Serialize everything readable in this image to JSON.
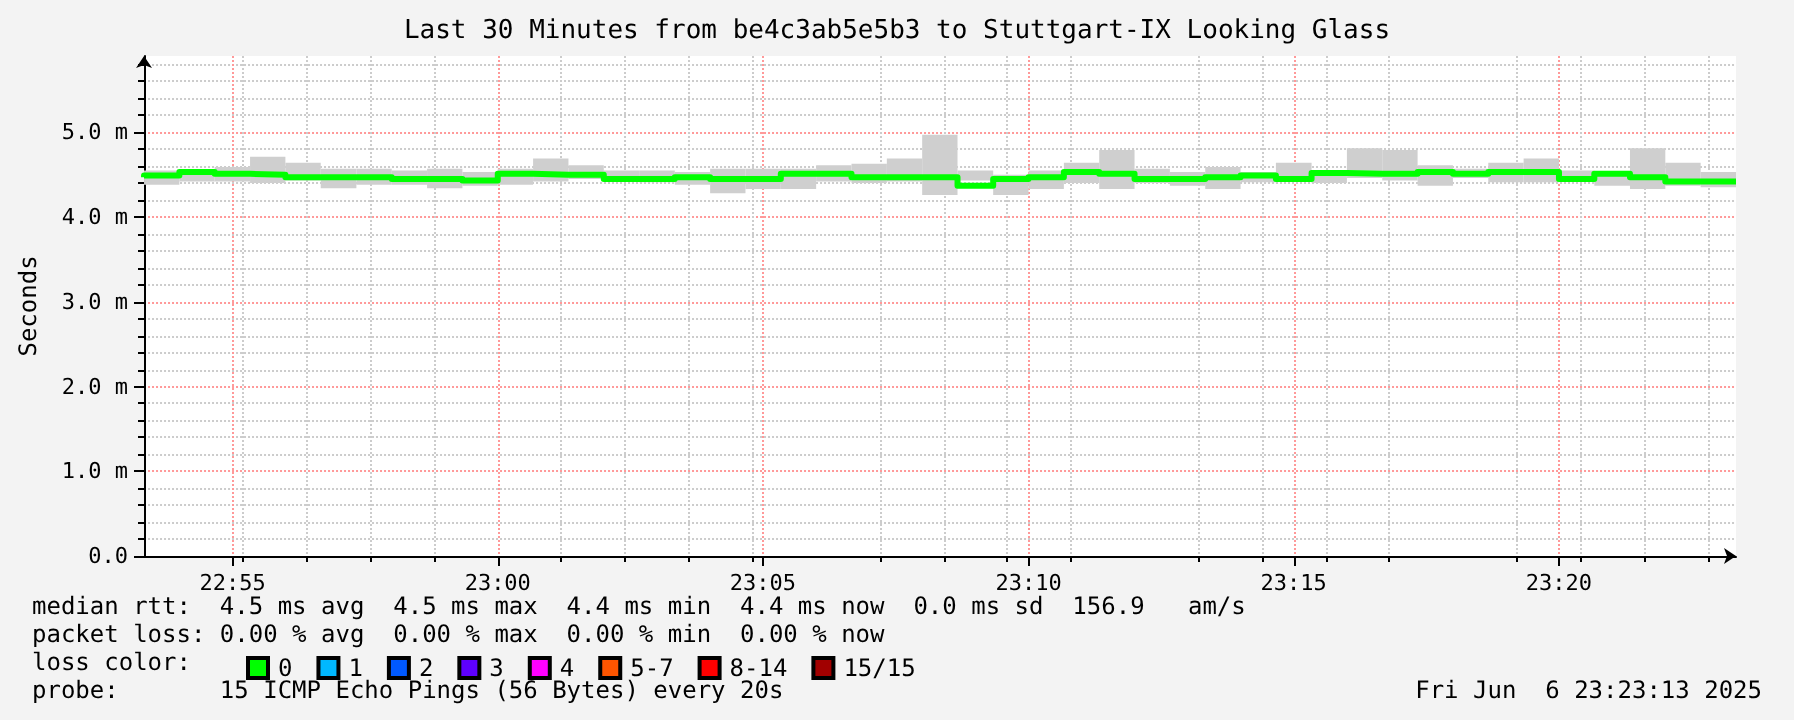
{
  "chart_data": {
    "type": "step",
    "title": "Last 30 Minutes from be4c3ab5e5b3 to Stuttgart-IX Looking Glass",
    "ylabel": "Seconds",
    "legend_title": "loss color:",
    "x": [
      22.8889,
      22.9,
      22.9111,
      22.9222,
      22.9333,
      22.9444,
      22.9556,
      22.9667,
      22.9778,
      22.9889,
      23.0,
      23.0111,
      23.0222,
      23.0333,
      23.0444,
      23.0556,
      23.0667,
      23.0778,
      23.0889,
      23.1,
      23.1111,
      23.1222,
      23.1333,
      23.1444,
      23.1556,
      23.1667,
      23.1778,
      23.1889,
      23.2,
      23.2111,
      23.2222,
      23.2333,
      23.2444,
      23.2556,
      23.2667,
      23.2778,
      23.2889,
      23.3,
      23.3111,
      23.3222,
      23.3333,
      23.3444,
      23.3556,
      23.3667,
      23.3778,
      23.3889
    ],
    "series": [
      {
        "name": "0",
        "color": "#00ff00",
        "values": [
          4.47,
          4.49,
          4.53,
          4.51,
          4.5,
          4.47,
          4.47,
          4.47,
          4.45,
          4.45,
          4.43,
          4.51,
          4.5,
          4.5,
          4.45,
          4.45,
          4.47,
          4.45,
          4.45,
          4.51,
          4.51,
          4.47,
          4.47,
          4.47,
          4.37,
          4.45,
          4.47,
          4.53,
          4.51,
          4.45,
          4.45,
          4.47,
          4.49,
          4.45,
          4.52,
          4.51,
          4.51,
          4.53,
          4.51,
          4.53,
          4.53,
          4.45,
          4.51,
          4.47,
          4.42,
          4.42
        ],
        "lower": [
          4.38,
          4.42,
          4.42,
          4.4,
          4.43,
          4.34,
          4.38,
          4.38,
          4.34,
          4.37,
          4.38,
          4.42,
          4.45,
          4.46,
          4.41,
          4.38,
          4.28,
          4.33,
          4.33,
          4.42,
          4.4,
          4.42,
          4.26,
          4.43,
          4.26,
          4.33,
          4.4,
          4.33,
          4.4,
          4.37,
          4.33,
          4.41,
          4.45,
          4.4,
          4.46,
          4.43,
          4.37,
          4.46,
          4.41,
          4.41,
          4.48,
          4.37,
          4.33,
          4.37,
          4.35,
          4.35
        ],
        "upper": [
          4.55,
          4.55,
          4.59,
          4.71,
          4.64,
          4.57,
          4.57,
          4.55,
          4.57,
          4.53,
          4.57,
          4.69,
          4.61,
          4.55,
          4.55,
          4.53,
          4.57,
          4.57,
          4.57,
          4.61,
          4.63,
          4.69,
          4.97,
          4.55,
          4.5,
          4.55,
          4.64,
          4.79,
          4.57,
          4.53,
          4.59,
          4.53,
          4.64,
          4.53,
          4.81,
          4.79,
          4.61,
          4.57,
          4.64,
          4.69,
          4.55,
          4.53,
          4.81,
          4.64,
          4.53,
          4.53
        ]
      },
      {
        "name": "1",
        "color": "#00b8ff",
        "values": [
          null,
          null,
          null,
          null,
          null,
          null,
          null,
          null,
          null,
          null,
          null,
          null,
          null,
          null,
          null,
          null,
          null,
          null,
          null,
          null,
          null,
          null,
          null,
          null,
          null,
          null,
          null,
          null,
          null,
          null,
          null,
          null,
          null,
          null,
          null,
          null,
          null,
          null,
          null,
          null,
          null,
          null,
          null,
          null,
          null,
          null
        ]
      },
      {
        "name": "2",
        "color": "#0059ff",
        "values": [
          null,
          null,
          null,
          null,
          null,
          null,
          null,
          null,
          null,
          null,
          null,
          null,
          null,
          null,
          null,
          null,
          null,
          null,
          null,
          null,
          null,
          null,
          null,
          null,
          null,
          null,
          null,
          null,
          null,
          null,
          null,
          null,
          null,
          null,
          null,
          null,
          null,
          null,
          null,
          null,
          null,
          null,
          null,
          null,
          null,
          null
        ]
      },
      {
        "name": "3",
        "color": "#5e00ff",
        "values": [
          null,
          null,
          null,
          null,
          null,
          null,
          null,
          null,
          null,
          null,
          null,
          null,
          null,
          null,
          null,
          null,
          null,
          null,
          null,
          null,
          null,
          null,
          null,
          null,
          null,
          null,
          null,
          null,
          null,
          null,
          null,
          null,
          null,
          null,
          null,
          null,
          null,
          null,
          null,
          null,
          null,
          null,
          null,
          null,
          null,
          null
        ]
      },
      {
        "name": "4",
        "color": "#ff00ff",
        "values": [
          null,
          null,
          null,
          null,
          null,
          null,
          null,
          null,
          null,
          null,
          null,
          null,
          null,
          null,
          null,
          null,
          null,
          null,
          null,
          null,
          null,
          null,
          null,
          null,
          null,
          null,
          null,
          null,
          null,
          null,
          null,
          null,
          null,
          null,
          null,
          null,
          null,
          null,
          null,
          null,
          null,
          null,
          null,
          null,
          null,
          null
        ]
      },
      {
        "name": "5-7",
        "color": "#ff5500",
        "values": [
          null,
          null,
          null,
          null,
          null,
          null,
          null,
          null,
          null,
          null,
          null,
          null,
          null,
          null,
          null,
          null,
          null,
          null,
          null,
          null,
          null,
          null,
          null,
          null,
          null,
          null,
          null,
          null,
          null,
          null,
          null,
          null,
          null,
          null,
          null,
          null,
          null,
          null,
          null,
          null,
          null,
          null,
          null,
          null,
          null,
          null
        ]
      },
      {
        "name": "8-14",
        "color": "#ff0000",
        "values": [
          null,
          null,
          null,
          null,
          null,
          null,
          null,
          null,
          null,
          null,
          null,
          null,
          null,
          null,
          null,
          null,
          null,
          null,
          null,
          null,
          null,
          null,
          null,
          null,
          null,
          null,
          null,
          null,
          null,
          null,
          null,
          null,
          null,
          null,
          null,
          null,
          null,
          null,
          null,
          null,
          null,
          null,
          null,
          null,
          null,
          null
        ]
      },
      {
        "name": "15/15",
        "color": "#a10000",
        "values": [
          null,
          null,
          null,
          null,
          null,
          null,
          null,
          null,
          null,
          null,
          null,
          null,
          null,
          null,
          null,
          null,
          null,
          null,
          null,
          null,
          null,
          null,
          null,
          null,
          null,
          null,
          null,
          null,
          null,
          null,
          null,
          null,
          null,
          null,
          null,
          null,
          null,
          null,
          null,
          null,
          null,
          null,
          null,
          null,
          null,
          null
        ]
      }
    ],
    "xlim": [
      22.8889,
      23.3889
    ],
    "xticks": [
      {
        "value": 22.9167,
        "label": "22:55"
      },
      {
        "value": 23.0,
        "label": "23:00"
      },
      {
        "value": 23.0833,
        "label": "23:05"
      },
      {
        "value": 23.1667,
        "label": "23:10"
      },
      {
        "value": 23.25,
        "label": "23:15"
      },
      {
        "value": 23.3333,
        "label": "23:20"
      }
    ],
    "ylim": [
      0,
      5.9
    ],
    "yticks": [
      {
        "value": 0,
        "label": "0.0"
      },
      {
        "value": 1,
        "label": "1.0 m"
      },
      {
        "value": 2,
        "label": "2.0 m"
      },
      {
        "value": 3,
        "label": "3.0 m"
      },
      {
        "value": 4,
        "label": "4.0 m"
      },
      {
        "value": 5,
        "label": "5.0 m"
      }
    ],
    "grid": true,
    "legend": "bottom",
    "marker": "none",
    "line_style": "solid",
    "annotations": [
      "median rtt:  4.5 ms avg  4.5 ms max  4.4 ms min  4.4 ms now  0.0 ms sd  156.9   am/s",
      "packet loss: 0.00 % avg  0.00 % max  0.00 % min  0.00 % now",
      "probe:       15 ICMP Echo Pings (56 Bytes) every 20s",
      "Fri Jun  6 23:23:13 2025"
    ]
  }
}
